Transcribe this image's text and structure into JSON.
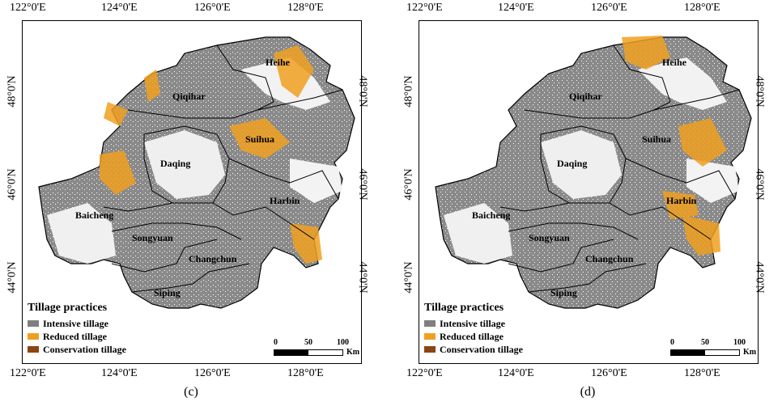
{
  "axis": {
    "lon_labels": [
      "122°0'E",
      "124°0'E",
      "126°0'E",
      "128°0'E"
    ],
    "lat_labels": [
      "48°0'N",
      "46°0'N",
      "44°0'N"
    ]
  },
  "legend": {
    "title": "Tillage practices",
    "items": [
      {
        "label": "Intensive tillage",
        "color": "#7f7f7f"
      },
      {
        "label": "Reduced tillage",
        "color": "#f0a020"
      },
      {
        "label": "Conservation tillage",
        "color": "#8b4513"
      }
    ]
  },
  "scalebar": {
    "labels": [
      "0",
      "50",
      "100"
    ],
    "unit": "Km"
  },
  "regions": [
    "Heihe",
    "Qiqihar",
    "Suihua",
    "Daqing",
    "Harbin",
    "Baicheng",
    "Songyuan",
    "Changchun",
    "Siping"
  ],
  "panels": [
    {
      "caption": "(c)"
    },
    {
      "caption": "(d)"
    }
  ]
}
